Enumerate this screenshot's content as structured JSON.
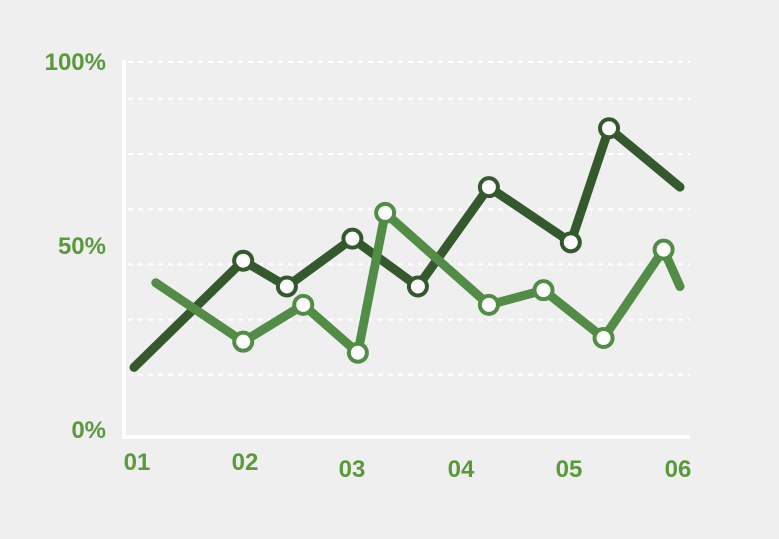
{
  "chart_data": {
    "type": "line",
    "title": "",
    "xlabel": "",
    "ylabel": "",
    "x_ticks": [
      "01",
      "02",
      "03",
      "04",
      "05",
      "06"
    ],
    "y_ticks": [
      "0%",
      "50%",
      "100%"
    ],
    "y_gridlines": [
      0,
      15,
      30,
      45,
      60,
      75,
      90,
      100
    ],
    "ylim": [
      0,
      100
    ],
    "xlim": [
      1,
      6
    ],
    "grid": true,
    "legend": "none",
    "series": [
      {
        "color": "#33592d",
        "x": [
          1.0,
          2.0,
          2.4,
          3.0,
          3.6,
          4.25,
          5.0,
          5.35,
          6.0
        ],
        "values": [
          17,
          46,
          39,
          52,
          39,
          66,
          51,
          82,
          66
        ],
        "markers": [
          false,
          true,
          true,
          true,
          true,
          true,
          true,
          true,
          false
        ]
      },
      {
        "color": "#528c46",
        "x": [
          1.2,
          2.0,
          2.55,
          3.05,
          3.3,
          4.25,
          4.75,
          5.3,
          5.85,
          6.0
        ],
        "values": [
          40,
          24,
          34,
          21,
          59,
          34,
          38,
          25,
          49,
          39
        ],
        "markers": [
          false,
          true,
          true,
          true,
          true,
          true,
          true,
          true,
          true,
          false
        ]
      }
    ]
  },
  "colors": {
    "background": "#efeff0",
    "label": "#5a9a3c",
    "axis": "#ffffff",
    "grid": "#ffffff"
  }
}
